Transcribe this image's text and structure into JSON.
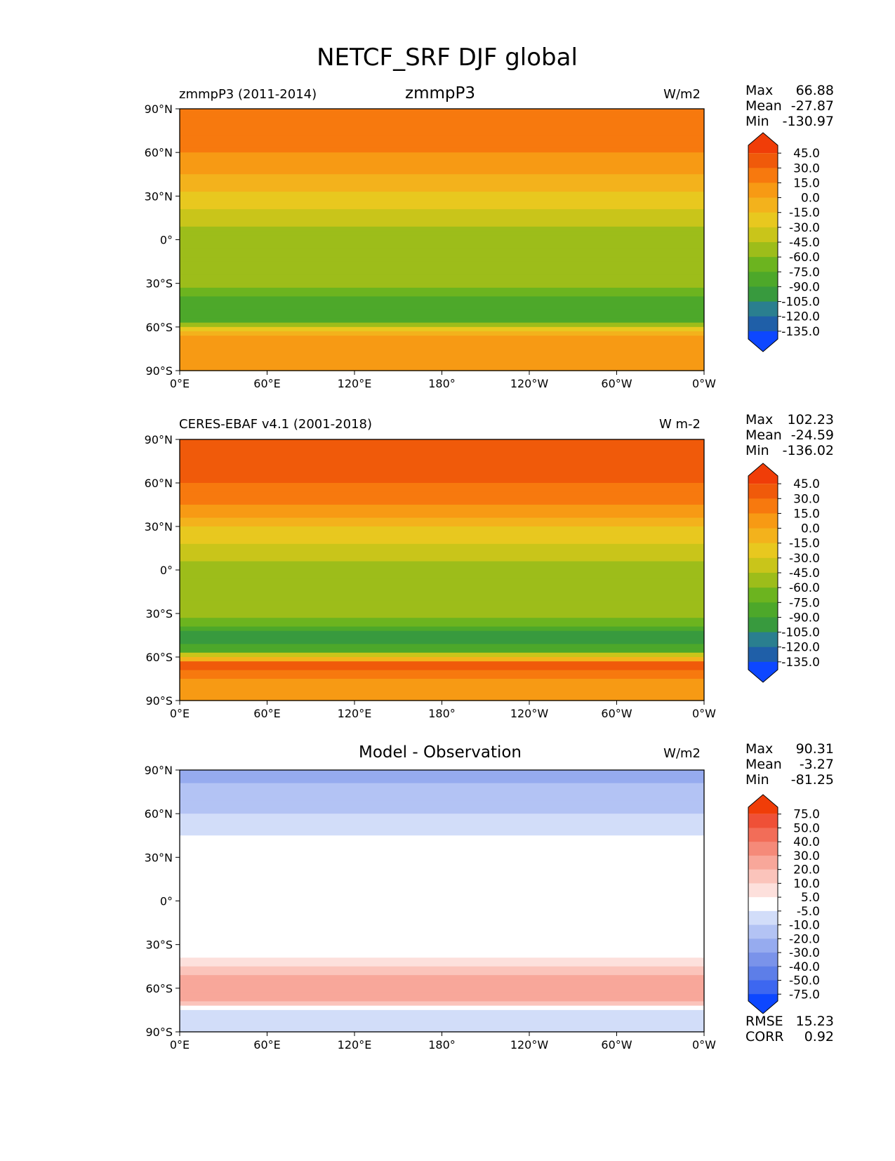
{
  "title": "NETCF_SRF DJF global",
  "colors": {
    "abs_levels": [
      "#0d47ff",
      "#1f5fa8",
      "#2a7f8f",
      "#389a3e",
      "#4da82a",
      "#6cb41f",
      "#9dbd1a",
      "#c9c51a",
      "#e8c81f",
      "#f3b21c",
      "#f79a14",
      "#f7790e",
      "#f05a0a",
      "#f03d08"
    ],
    "diff_levels": [
      "#0d47ff",
      "#3d67f0",
      "#5d7ee8",
      "#7a93ea",
      "#96abef",
      "#b3c3f4",
      "#d2ddf9",
      "#ffffff",
      "#fde0dc",
      "#fbc4bb",
      "#f8a79a",
      "#f58a79",
      "#f26d58",
      "#ef5037",
      "#f03d08"
    ],
    "land_tint": "#000000"
  },
  "chart_data": [
    {
      "type": "heatmap",
      "panel": "model",
      "title_left": "zmmpP3 (2011-2014)",
      "title_center": "zmmpP3",
      "title_right": "W/m2",
      "stats": {
        "max_label": "Max",
        "max": "66.88",
        "mean_label": "Mean",
        "mean": "-27.87",
        "min_label": "Min",
        "min": "-130.97"
      },
      "x_ticks": [
        "0°E",
        "60°E",
        "120°E",
        "180°",
        "120°W",
        "60°W",
        "0°W"
      ],
      "y_ticks": [
        "90°N",
        "60°N",
        "30°N",
        "0°",
        "30°S",
        "60°S",
        "90°S"
      ],
      "colorbar_ticks": [
        "45.0",
        "30.0",
        "15.0",
        "0.0",
        "-15.0",
        "-30.0",
        "-45.0",
        "-60.0",
        "-75.0",
        "-90.0",
        "-105.0",
        "-120.0",
        "-135.0"
      ],
      "zonal_mean_profile": [
        {
          "lat": 90,
          "value": 20
        },
        {
          "lat": 75,
          "value": 30
        },
        {
          "lat": 60,
          "value": 15
        },
        {
          "lat": 45,
          "value": 0
        },
        {
          "lat": 30,
          "value": -20
        },
        {
          "lat": 15,
          "value": -40
        },
        {
          "lat": 0,
          "value": -55
        },
        {
          "lat": -15,
          "value": -60
        },
        {
          "lat": -30,
          "value": -55
        },
        {
          "lat": -45,
          "value": -90
        },
        {
          "lat": -55,
          "value": -80
        },
        {
          "lat": -65,
          "value": 0
        },
        {
          "lat": -75,
          "value": 10
        },
        {
          "lat": -90,
          "value": 10
        }
      ]
    },
    {
      "type": "heatmap",
      "panel": "observation",
      "title_left": "CERES-EBAF v4.1 (2001-2018)",
      "title_center": "",
      "title_right": "W m-2",
      "stats": {
        "max_label": "Max",
        "max": "102.23",
        "mean_label": "Mean",
        "mean": "-24.59",
        "min_label": "Min",
        "min": "-136.02"
      },
      "x_ticks": [
        "0°E",
        "60°E",
        "120°E",
        "180°",
        "120°W",
        "60°W",
        "0°W"
      ],
      "y_ticks": [
        "90°N",
        "60°N",
        "30°N",
        "0°",
        "30°S",
        "60°S",
        "90°S"
      ],
      "colorbar_ticks": [
        "45.0",
        "30.0",
        "15.0",
        "0.0",
        "-15.0",
        "-30.0",
        "-45.0",
        "-60.0",
        "-75.0",
        "-90.0",
        "-105.0",
        "-120.0",
        "-135.0"
      ],
      "zonal_mean_profile": [
        {
          "lat": 90,
          "value": 45
        },
        {
          "lat": 75,
          "value": 40
        },
        {
          "lat": 60,
          "value": 30
        },
        {
          "lat": 45,
          "value": 15
        },
        {
          "lat": 30,
          "value": -15
        },
        {
          "lat": 15,
          "value": -35
        },
        {
          "lat": 0,
          "value": -50
        },
        {
          "lat": -15,
          "value": -50
        },
        {
          "lat": -30,
          "value": -50
        },
        {
          "lat": -45,
          "value": -95
        },
        {
          "lat": -55,
          "value": -85
        },
        {
          "lat": -65,
          "value": 45
        },
        {
          "lat": -75,
          "value": 15
        },
        {
          "lat": -90,
          "value": 10
        }
      ]
    },
    {
      "type": "heatmap",
      "panel": "difference",
      "title_left": "",
      "title_center": "Model - Observation",
      "title_right": "W/m2",
      "stats": {
        "max_label": "Max",
        "max": "90.31",
        "mean_label": "Mean",
        "mean": "-3.27",
        "min_label": "Min",
        "min": "-81.25",
        "rmse_label": "RMSE",
        "rmse": "15.23",
        "corr_label": "CORR",
        "corr": "0.92"
      },
      "x_ticks": [
        "0°E",
        "60°E",
        "120°E",
        "180°",
        "120°W",
        "60°W",
        "0°W"
      ],
      "y_ticks": [
        "90°N",
        "60°N",
        "30°N",
        "0°",
        "30°S",
        "60°S",
        "90°S"
      ],
      "colorbar_ticks": [
        "75.0",
        "50.0",
        "40.0",
        "30.0",
        "20.0",
        "10.0",
        "5.0",
        "-5.0",
        "-10.0",
        "-20.0",
        "-30.0",
        "-40.0",
        "-50.0",
        "-75.0"
      ],
      "zonal_mean_profile": [
        {
          "lat": 90,
          "value": -30
        },
        {
          "lat": 75,
          "value": -15
        },
        {
          "lat": 60,
          "value": -10
        },
        {
          "lat": 45,
          "value": -5
        },
        {
          "lat": 30,
          "value": 0
        },
        {
          "lat": 15,
          "value": -5
        },
        {
          "lat": 0,
          "value": 5
        },
        {
          "lat": -15,
          "value": 0
        },
        {
          "lat": -30,
          "value": -5
        },
        {
          "lat": -45,
          "value": 10
        },
        {
          "lat": -55,
          "value": 25
        },
        {
          "lat": -65,
          "value": 30
        },
        {
          "lat": -75,
          "value": -5
        },
        {
          "lat": -90,
          "value": -10
        }
      ]
    }
  ]
}
